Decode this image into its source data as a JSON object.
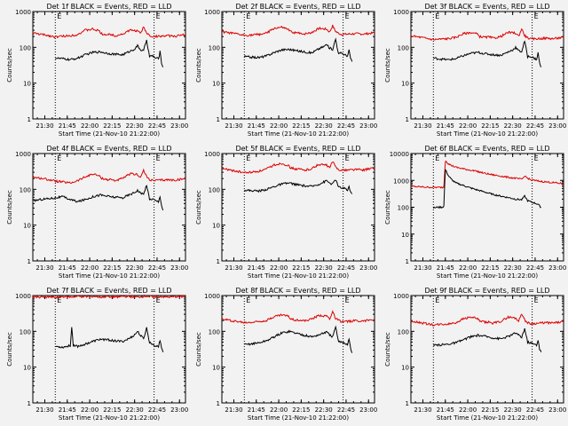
{
  "figure": {
    "background": "#f2f2f2",
    "colors": {
      "events": "#000000",
      "lld": "#dd0000",
      "axis": "#000000"
    },
    "shared_axes": {
      "xlabel": "Start Time (21-Nov-10 21:22:00)",
      "ylabel": "Counts/sec",
      "xticks": [
        "21:30",
        "21:45",
        "22:00",
        "22:15",
        "22:30",
        "22:45",
        "23:00"
      ],
      "xticks_minutes": [
        8,
        23,
        38,
        53,
        68,
        83,
        98
      ],
      "xlim_minutes": [
        0,
        102
      ],
      "dotted_lines_minutes": [
        15,
        81
      ],
      "edge_marks": [
        "E",
        "E"
      ],
      "scale": "log"
    }
  },
  "chart_data": [
    {
      "type": "line",
      "title": "Det 1f BLACK = Events, RED = LLD",
      "ylim": [
        1,
        1000
      ],
      "yticks": [
        "1",
        "10",
        "100",
        "1000"
      ],
      "series": [
        {
          "key": "lld",
          "x": [
            0,
            10,
            15,
            20,
            25,
            30,
            35,
            40,
            44,
            46,
            48,
            50,
            52,
            55,
            60,
            65,
            70,
            72,
            74,
            76,
            78,
            80,
            85,
            90,
            95,
            102
          ],
          "values": [
            250,
            215,
            195,
            205,
            210,
            230,
            300,
            320,
            290,
            240,
            230,
            225,
            230,
            210,
            235,
            300,
            290,
            240,
            370,
            250,
            215,
            200,
            205,
            210,
            205,
            225
          ]
        },
        {
          "key": "events",
          "x": [
            15,
            20,
            25,
            30,
            35,
            40,
            45,
            50,
            55,
            60,
            65,
            68,
            70,
            72,
            74,
            76,
            78,
            80,
            82,
            84,
            85,
            86,
            87
          ],
          "values": [
            50,
            48,
            45,
            50,
            62,
            72,
            75,
            68,
            64,
            62,
            78,
            90,
            110,
            85,
            80,
            160,
            55,
            58,
            50,
            48,
            75,
            38,
            28
          ]
        }
      ]
    },
    {
      "type": "line",
      "title": "Det 2f BLACK = Events, RED = LLD",
      "ylim": [
        1,
        1000
      ],
      "yticks": [
        "1",
        "10",
        "100",
        "1000"
      ],
      "series": [
        {
          "key": "lld",
          "x": [
            0,
            10,
            15,
            20,
            25,
            30,
            35,
            40,
            44,
            46,
            48,
            50,
            52,
            55,
            60,
            65,
            70,
            72,
            74,
            76,
            78,
            80,
            85,
            90,
            95,
            102
          ],
          "values": [
            270,
            235,
            215,
            220,
            230,
            250,
            340,
            360,
            320,
            270,
            260,
            250,
            255,
            235,
            260,
            340,
            320,
            270,
            400,
            280,
            245,
            230,
            235,
            240,
            235,
            255
          ]
        },
        {
          "key": "events",
          "x": [
            15,
            20,
            25,
            30,
            35,
            40,
            45,
            50,
            55,
            60,
            65,
            68,
            70,
            72,
            74,
            76,
            78,
            80,
            82,
            84,
            85,
            86,
            87
          ],
          "values": [
            55,
            53,
            52,
            58,
            72,
            85,
            88,
            80,
            75,
            70,
            92,
            105,
            120,
            95,
            88,
            170,
            65,
            70,
            62,
            58,
            82,
            50,
            40
          ]
        }
      ]
    },
    {
      "type": "line",
      "title": "Det 3f BLACK = Events, RED = LLD",
      "ylim": [
        1,
        1000
      ],
      "yticks": [
        "1",
        "10",
        "100",
        "1000"
      ],
      "series": [
        {
          "key": "lld",
          "x": [
            0,
            10,
            15,
            20,
            25,
            30,
            35,
            40,
            44,
            46,
            48,
            50,
            52,
            55,
            60,
            65,
            70,
            72,
            74,
            76,
            78,
            80,
            85,
            90,
            95,
            102
          ],
          "values": [
            210,
            180,
            165,
            170,
            175,
            190,
            240,
            260,
            240,
            200,
            195,
            190,
            195,
            180,
            200,
            260,
            250,
            205,
            330,
            215,
            185,
            170,
            175,
            180,
            175,
            190
          ]
        },
        {
          "key": "events",
          "x": [
            15,
            20,
            25,
            30,
            35,
            40,
            45,
            50,
            55,
            60,
            65,
            68,
            70,
            72,
            74,
            76,
            78,
            80,
            82,
            84,
            85,
            86,
            87
          ],
          "values": [
            50,
            47,
            45,
            48,
            58,
            68,
            72,
            66,
            62,
            60,
            74,
            85,
            100,
            80,
            76,
            150,
            55,
            56,
            50,
            46,
            70,
            36,
            28
          ]
        }
      ]
    },
    {
      "type": "line",
      "title": "Det 4f BLACK = Events, RED = LLD",
      "ylim": [
        1,
        1000
      ],
      "yticks": [
        "1",
        "10",
        "100",
        "1000"
      ],
      "series": [
        {
          "key": "lld",
          "x": [
            0,
            10,
            15,
            20,
            25,
            30,
            35,
            40,
            44,
            46,
            48,
            50,
            52,
            55,
            60,
            65,
            70,
            72,
            74,
            76,
            78,
            80,
            85,
            90,
            95,
            102
          ],
          "values": [
            220,
            190,
            170,
            160,
            150,
            175,
            220,
            270,
            240,
            205,
            195,
            185,
            190,
            175,
            200,
            270,
            260,
            215,
            340,
            225,
            190,
            175,
            180,
            185,
            180,
            200
          ]
        },
        {
          "key": "events",
          "x": [
            0,
            5,
            10,
            15,
            20,
            25,
            30,
            35,
            40,
            45,
            50,
            55,
            60,
            65,
            68,
            70,
            72,
            74,
            76,
            78,
            80,
            82,
            84,
            85,
            86,
            87
          ],
          "values": [
            48,
            52,
            55,
            58,
            62,
            52,
            45,
            52,
            62,
            70,
            64,
            60,
            58,
            72,
            82,
            95,
            78,
            72,
            135,
            52,
            55,
            48,
            45,
            65,
            36,
            26
          ]
        }
      ]
    },
    {
      "type": "line",
      "title": "Det 5f BLACK = Events, RED = LLD",
      "ylim": [
        1,
        1000
      ],
      "yticks": [
        "1",
        "10",
        "100",
        "1000"
      ],
      "series": [
        {
          "key": "lld",
          "x": [
            0,
            10,
            15,
            20,
            25,
            30,
            35,
            40,
            44,
            46,
            48,
            50,
            52,
            55,
            60,
            65,
            70,
            72,
            74,
            76,
            78,
            80,
            85,
            90,
            95,
            102
          ],
          "values": [
            380,
            320,
            290,
            300,
            320,
            370,
            480,
            530,
            470,
            400,
            380,
            360,
            370,
            340,
            380,
            500,
            470,
            400,
            600,
            420,
            360,
            340,
            350,
            360,
            350,
            400
          ]
        },
        {
          "key": "events",
          "x": [
            15,
            20,
            25,
            30,
            35,
            40,
            45,
            50,
            55,
            60,
            65,
            68,
            70,
            72,
            74,
            76,
            78,
            80,
            82,
            84,
            85,
            86,
            87
          ],
          "values": [
            95,
            92,
            90,
            100,
            120,
            140,
            150,
            135,
            125,
            120,
            140,
            160,
            175,
            150,
            140,
            190,
            115,
            110,
            105,
            95,
            120,
            85,
            75
          ]
        }
      ]
    },
    {
      "type": "line",
      "title": "Det 6f BLACK = Events, RED = LLD",
      "ylim": [
        1,
        10000
      ],
      "yticks": [
        "1",
        "10",
        "100",
        "1000",
        "10000"
      ],
      "series": [
        {
          "key": "lld",
          "x": [
            0,
            5,
            10,
            15,
            20,
            22,
            23,
            24,
            25,
            27,
            30,
            35,
            40,
            45,
            50,
            55,
            60,
            65,
            70,
            74,
            76,
            80,
            85,
            90,
            95,
            102
          ],
          "values": [
            600,
            580,
            560,
            550,
            550,
            560,
            5000,
            4800,
            4200,
            3600,
            3100,
            2700,
            2400,
            2100,
            1800,
            1600,
            1450,
            1300,
            1200,
            1100,
            1400,
            1050,
            950,
            880,
            830,
            750
          ]
        },
        {
          "key": "events",
          "x": [
            15,
            18,
            21,
            22,
            23,
            24,
            25,
            27,
            30,
            35,
            40,
            45,
            50,
            55,
            60,
            65,
            70,
            74,
            76,
            78,
            80,
            85,
            86,
            87
          ],
          "values": [
            95,
            100,
            100,
            110,
            2500,
            2000,
            1500,
            1100,
            800,
            650,
            520,
            430,
            360,
            300,
            260,
            230,
            200,
            190,
            260,
            175,
            160,
            130,
            110,
            100
          ]
        }
      ]
    },
    {
      "type": "line",
      "title": "Det 7f BLACK = Events, RED = LLD",
      "ylim": [
        1,
        1000
      ],
      "yticks": [
        "1",
        "10",
        "100",
        "1000"
      ],
      "series": [
        {
          "key": "lld",
          "x": [
            0,
            5,
            10,
            15,
            20,
            25,
            30,
            35,
            40,
            45,
            50,
            55,
            60,
            65,
            70,
            75,
            80,
            85,
            90,
            95,
            102
          ],
          "values": [
            950,
            900,
            920,
            880,
            940,
            900,
            950,
            920,
            960,
            900,
            940,
            910,
            950,
            930,
            900,
            960,
            920,
            940,
            900,
            930,
            950
          ]
        },
        {
          "key": "events",
          "x": [
            15,
            20,
            25,
            26,
            27,
            30,
            35,
            40,
            45,
            50,
            55,
            60,
            65,
            68,
            70,
            72,
            74,
            76,
            78,
            80,
            82,
            84,
            85,
            86,
            87
          ],
          "values": [
            38,
            36,
            40,
            130,
            42,
            38,
            44,
            52,
            60,
            58,
            54,
            52,
            65,
            80,
            100,
            75,
            62,
            125,
            48,
            44,
            40,
            38,
            55,
            35,
            26
          ]
        }
      ]
    },
    {
      "type": "line",
      "title": "Det 8f BLACK = Events, RED = LLD",
      "ylim": [
        1,
        1000
      ],
      "yticks": [
        "1",
        "10",
        "100",
        "1000"
      ],
      "series": [
        {
          "key": "lld",
          "x": [
            0,
            10,
            15,
            20,
            25,
            30,
            35,
            40,
            44,
            46,
            48,
            50,
            52,
            55,
            60,
            65,
            70,
            72,
            74,
            76,
            78,
            80,
            85,
            90,
            95,
            102
          ],
          "values": [
            220,
            190,
            175,
            180,
            190,
            205,
            260,
            290,
            270,
            225,
            215,
            205,
            210,
            195,
            220,
            280,
            270,
            220,
            360,
            230,
            200,
            185,
            190,
            200,
            195,
            215
          ]
        },
        {
          "key": "events",
          "x": [
            15,
            20,
            25,
            30,
            35,
            40,
            45,
            50,
            55,
            60,
            65,
            68,
            70,
            72,
            74,
            76,
            78,
            80,
            82,
            84,
            85,
            86,
            87
          ],
          "values": [
            42,
            45,
            48,
            55,
            70,
            90,
            100,
            88,
            78,
            70,
            80,
            90,
            95,
            80,
            70,
            130,
            50,
            52,
            46,
            44,
            62,
            33,
            25
          ]
        }
      ]
    },
    {
      "type": "line",
      "title": "Det 9f BLACK = Events, RED = LLD",
      "ylim": [
        1,
        1000
      ],
      "yticks": [
        "1",
        "10",
        "100",
        "1000"
      ],
      "series": [
        {
          "key": "lld",
          "x": [
            0,
            10,
            15,
            20,
            25,
            30,
            35,
            40,
            44,
            46,
            48,
            50,
            52,
            55,
            60,
            65,
            70,
            72,
            74,
            76,
            78,
            80,
            85,
            90,
            95,
            102
          ],
          "values": [
            190,
            165,
            150,
            155,
            160,
            175,
            225,
            250,
            230,
            195,
            185,
            178,
            182,
            168,
            190,
            250,
            235,
            195,
            320,
            205,
            175,
            162,
            168,
            175,
            170,
            185
          ]
        },
        {
          "key": "events",
          "x": [
            15,
            20,
            25,
            30,
            35,
            40,
            45,
            50,
            55,
            60,
            65,
            68,
            70,
            72,
            74,
            76,
            78,
            80,
            82,
            84,
            85,
            86,
            87
          ],
          "values": [
            40,
            42,
            44,
            48,
            58,
            70,
            78,
            72,
            66,
            62,
            72,
            82,
            92,
            78,
            68,
            120,
            50,
            48,
            44,
            42,
            58,
            32,
            26
          ]
        }
      ]
    }
  ]
}
